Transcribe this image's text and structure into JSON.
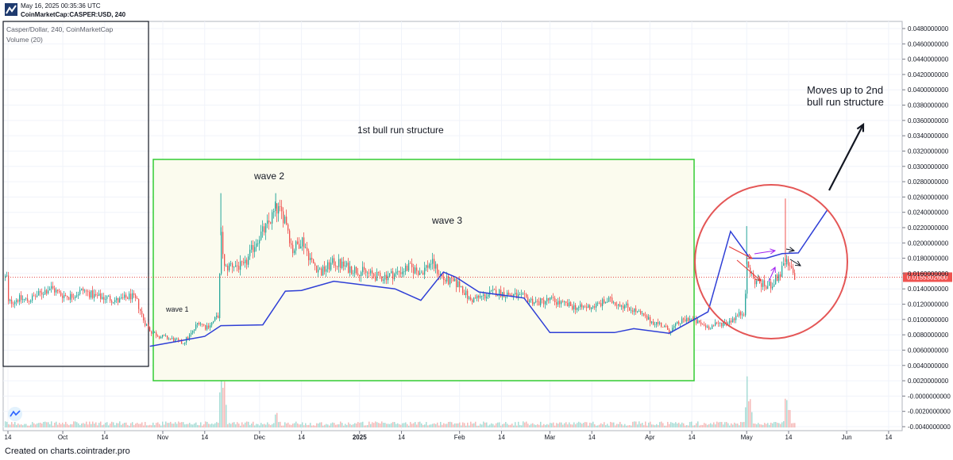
{
  "header": {
    "timestamp": "May 16, 2025 00:35:36 UTC",
    "symbol": "CoinMarketCap:CASPER:USD, 240"
  },
  "legend": {
    "series_title": "Casper/Dollar, 240, CoinMarketCap",
    "volume_label": "Volume (20)"
  },
  "footer": {
    "credit": "Created on charts.cointrader.pro"
  },
  "annotations": {
    "structure_1": "1st bull run structure",
    "wave_1": "wave 1",
    "wave_2": "wave 2",
    "wave_3": "wave 3",
    "target_line1": "Moves up to 2nd",
    "target_line2": "bull run structure"
  },
  "price_label": "0.0155302600",
  "colors": {
    "up": "#26a69a",
    "down": "#ef5350",
    "ma": "#2f3fd6",
    "box_border": "#33cc33",
    "box_fill": "#fbfbee",
    "circle": "#e45656",
    "arrow_red": "#e53935",
    "arrow_violet": "#a020f0",
    "price_line": "#e53935"
  },
  "chart_data": {
    "type": "candlestick",
    "title": "Casper/Dollar, 240, CoinMarketCap",
    "x_ticks": [
      "14",
      "Oct",
      "14",
      "Nov",
      "14",
      "Dec",
      "14",
      "2025",
      "14",
      "Feb",
      "14",
      "Mar",
      "14",
      "Apr",
      "14",
      "May",
      "14",
      "Jun",
      "14"
    ],
    "y_ticks": [
      "0.0480000000",
      "0.0460000000",
      "0.0440000000",
      "0.0420000000",
      "0.0400000000",
      "0.0380000000",
      "0.0360000000",
      "0.0340000000",
      "0.0320000000",
      "0.0300000000",
      "0.0280000000",
      "0.0260000000",
      "0.0240000000",
      "0.0220000000",
      "0.0200000000",
      "0.0180000000",
      "0.0160000000",
      "0.0140000000",
      "0.0120000000",
      "0.0100000000",
      "0.0080000000",
      "0.0060000000",
      "0.0040000000",
      "0.0020000000",
      "-0.0000000000",
      "-0.0020000000",
      "-0.0040000000"
    ],
    "ylim": [
      -0.0042,
      0.0488
    ],
    "last_price": 0.01553026,
    "price_path": [
      [
        "2024-09-14",
        0.0122
      ],
      [
        "2024-09-17",
        0.0127
      ],
      [
        "2024-09-20",
        0.0125
      ],
      [
        "2024-09-24",
        0.0134
      ],
      [
        "2024-09-27",
        0.0142
      ],
      [
        "2024-09-30",
        0.0133
      ],
      [
        "2024-10-03",
        0.013
      ],
      [
        "2024-10-07",
        0.0138
      ],
      [
        "2024-10-11",
        0.013
      ],
      [
        "2024-10-15",
        0.0128
      ],
      [
        "2024-10-18",
        0.0124
      ],
      [
        "2024-10-22",
        0.0131
      ],
      [
        "2024-10-24",
        0.0122
      ],
      [
        "2024-10-26",
        0.0098
      ],
      [
        "2024-10-28",
        0.0085
      ],
      [
        "2024-10-31",
        0.0078
      ],
      [
        "2024-11-04",
        0.0074
      ],
      [
        "2024-11-07",
        0.0069
      ],
      [
        "2024-11-10",
        0.0083
      ],
      [
        "2024-11-12",
        0.0098
      ],
      [
        "2024-11-14",
        0.009
      ],
      [
        "2024-11-16",
        0.0095
      ],
      [
        "2024-11-18",
        0.0105
      ],
      [
        "2024-11-19",
        0.021
      ],
      [
        "2024-11-20",
        0.0165
      ],
      [
        "2024-11-22",
        0.0172
      ],
      [
        "2024-11-26",
        0.0168
      ],
      [
        "2024-11-30",
        0.0205
      ],
      [
        "2024-12-03",
        0.022
      ],
      [
        "2024-12-06",
        0.0245
      ],
      [
        "2024-12-09",
        0.0232
      ],
      [
        "2024-12-11",
        0.019
      ],
      [
        "2024-12-14",
        0.0205
      ],
      [
        "2024-12-17",
        0.0175
      ],
      [
        "2024-12-20",
        0.0162
      ],
      [
        "2024-12-24",
        0.0175
      ],
      [
        "2024-12-28",
        0.0168
      ],
      [
        "2025-01-02",
        0.0162
      ],
      [
        "2025-01-07",
        0.0155
      ],
      [
        "2025-01-12",
        0.016
      ],
      [
        "2025-01-16",
        0.0168
      ],
      [
        "2025-01-20",
        0.0162
      ],
      [
        "2025-01-23",
        0.0175
      ],
      [
        "2025-01-27",
        0.0152
      ],
      [
        "2025-02-01",
        0.0145
      ],
      [
        "2025-02-04",
        0.0125
      ],
      [
        "2025-02-08",
        0.013
      ],
      [
        "2025-02-12",
        0.0136
      ],
      [
        "2025-02-17",
        0.0132
      ],
      [
        "2025-02-21",
        0.0128
      ],
      [
        "2025-02-25",
        0.0122
      ],
      [
        "2025-03-01",
        0.0126
      ],
      [
        "2025-03-05",
        0.012
      ],
      [
        "2025-03-10",
        0.0115
      ],
      [
        "2025-03-15",
        0.0118
      ],
      [
        "2025-03-19",
        0.0125
      ],
      [
        "2025-03-23",
        0.012
      ],
      [
        "2025-03-27",
        0.0112
      ],
      [
        "2025-04-01",
        0.0098
      ],
      [
        "2025-04-04",
        0.0094
      ],
      [
        "2025-04-07",
        0.0085
      ],
      [
        "2025-04-10",
        0.0096
      ],
      [
        "2025-04-13",
        0.0102
      ],
      [
        "2025-04-16",
        0.0095
      ],
      [
        "2025-04-19",
        0.009
      ],
      [
        "2025-04-22",
        0.0094
      ],
      [
        "2025-04-25",
        0.0097
      ],
      [
        "2025-04-28",
        0.0105
      ],
      [
        "2025-04-30",
        0.011
      ],
      [
        "2025-05-01",
        0.0172
      ],
      [
        "2025-05-03",
        0.0152
      ],
      [
        "2025-05-05",
        0.0148
      ],
      [
        "2025-05-07",
        0.0142
      ],
      [
        "2025-05-09",
        0.0148
      ],
      [
        "2025-05-11",
        0.0158
      ],
      [
        "2025-05-13",
        0.0175
      ],
      [
        "2025-05-14",
        0.0168
      ],
      [
        "2025-05-16",
        0.0155
      ]
    ],
    "spikes": [
      [
        "2024-11-19",
        0.0265
      ],
      [
        "2024-12-06",
        0.0265
      ],
      [
        "2025-05-01",
        0.0222
      ],
      [
        "2025-05-13",
        0.0258
      ]
    ],
    "ma_line": {
      "name": "",
      "points": [
        [
          "2024-10-28",
          0.0065
        ],
        [
          "2024-11-14",
          0.0078
        ],
        [
          "2024-11-19",
          0.0092
        ],
        [
          "2024-12-02",
          0.0093
        ],
        [
          "2024-12-09",
          0.0137
        ],
        [
          "2024-12-14",
          0.0138
        ],
        [
          "2024-12-24",
          0.015
        ],
        [
          "2025-01-12",
          0.014
        ],
        [
          "2025-01-20",
          0.0125
        ],
        [
          "2025-01-27",
          0.0162
        ],
        [
          "2025-01-31",
          0.0155
        ],
        [
          "2025-02-07",
          0.0136
        ],
        [
          "2025-02-21",
          0.0128
        ],
        [
          "2025-03-01",
          0.0083
        ],
        [
          "2025-03-21",
          0.0083
        ],
        [
          "2025-03-27",
          0.0088
        ],
        [
          "2025-04-07",
          0.0082
        ],
        [
          "2025-04-19",
          0.011
        ],
        [
          "2025-04-26",
          0.0215
        ],
        [
          "2025-05-02",
          0.018
        ],
        [
          "2025-05-07",
          0.018
        ],
        [
          "2025-05-12",
          0.0186
        ],
        [
          "2025-05-17",
          0.0187
        ],
        [
          "2025-05-26",
          0.0243
        ]
      ]
    },
    "volume_peaks": [
      [
        "2024-11-19",
        1.0
      ],
      [
        "2024-11-20",
        0.55
      ],
      [
        "2024-12-06",
        0.22
      ],
      [
        "2025-05-01",
        0.62
      ],
      [
        "2025-05-02",
        0.35
      ],
      [
        "2025-05-13",
        0.45
      ],
      [
        "2025-05-14",
        0.28
      ]
    ]
  }
}
